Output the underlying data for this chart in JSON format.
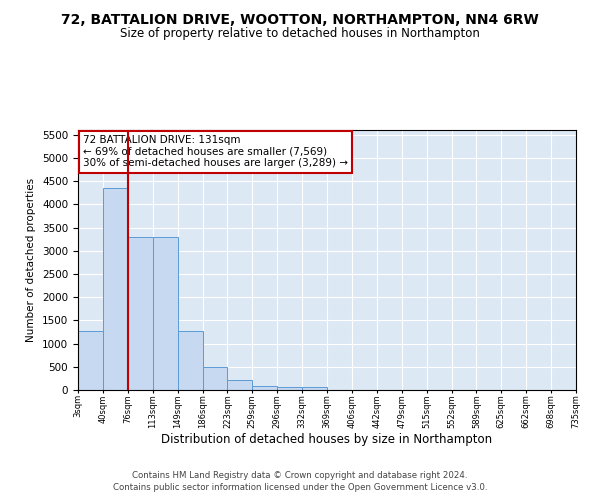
{
  "title": "72, BATTALION DRIVE, WOOTTON, NORTHAMPTON, NN4 6RW",
  "subtitle": "Size of property relative to detached houses in Northampton",
  "xlabel": "Distribution of detached houses by size in Northampton",
  "ylabel": "Number of detached properties",
  "bar_values": [
    1270,
    4350,
    3300,
    3300,
    1280,
    490,
    215,
    90,
    65,
    60,
    0,
    0,
    0,
    0,
    0,
    0,
    0,
    0,
    0,
    0
  ],
  "bar_labels": [
    "3sqm",
    "40sqm",
    "76sqm",
    "113sqm",
    "149sqm",
    "186sqm",
    "223sqm",
    "259sqm",
    "296sqm",
    "332sqm",
    "369sqm",
    "406sqm",
    "442sqm",
    "479sqm",
    "515sqm",
    "552sqm",
    "589sqm",
    "625sqm",
    "662sqm",
    "698sqm",
    "735sqm"
  ],
  "bar_color": "#c6d9f0",
  "bar_edge_color": "#5b9bd5",
  "vertical_line_x": 2.0,
  "vertical_line_color": "#c00000",
  "ylim": [
    0,
    5600
  ],
  "yticks": [
    0,
    500,
    1000,
    1500,
    2000,
    2500,
    3000,
    3500,
    4000,
    4500,
    5000,
    5500
  ],
  "annotation_title": "72 BATTALION DRIVE: 131sqm",
  "annotation_line1": "← 69% of detached houses are smaller (7,569)",
  "annotation_line2": "30% of semi-detached houses are larger (3,289) →",
  "annotation_box_color": "#c00000",
  "background_color": "#dde8f5",
  "footer_line1": "Contains HM Land Registry data © Crown copyright and database right 2024.",
  "footer_line2": "Contains public sector information licensed under the Open Government Licence v3.0."
}
